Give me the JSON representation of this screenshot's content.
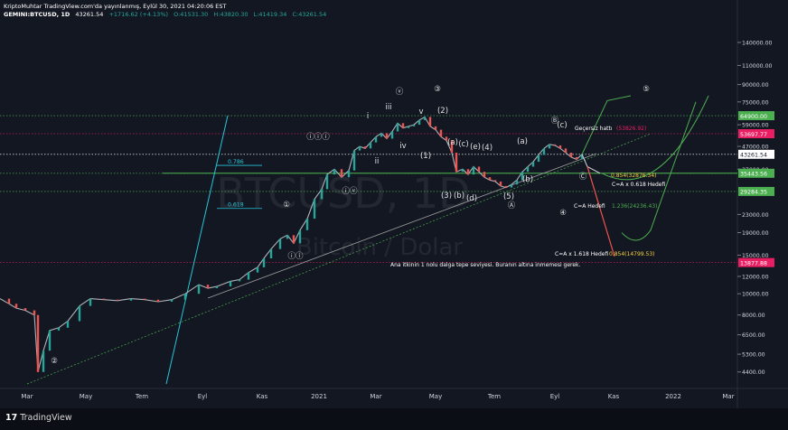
{
  "header": {
    "line1": "KriptoMuhtar TradingView.com'da yayınlanmış, Eylül 30, 2021 04:20:06 EST",
    "symbol": "GEMINI:BTCUSD, 1D",
    "last": "43261.54",
    "change": "+1716.62 (+4.13%)",
    "o": "O:41531.30",
    "h": "H:43820.30",
    "l": "L:41419.34",
    "c": "C:43261.54"
  },
  "footer": {
    "brand": "TradingView",
    "logo_icon": "tradingview-logo-icon"
  },
  "colors": {
    "background": "#131722",
    "up": "#26a69a",
    "down": "#ef5350",
    "green": "#4caf50",
    "red": "#e91e63",
    "cyan": "#26c6da",
    "white": "#ffffff"
  },
  "chart_data": {
    "type": "line",
    "watermark_main": "BTCUSD, 1D",
    "watermark_sub": "Bitcoin / Dolar",
    "y_scale": "log",
    "y_ticks": [
      140000,
      110000,
      90000,
      75000,
      59000,
      47000,
      37000,
      23000,
      19000,
      15000,
      12000,
      10000,
      8000,
      6500,
      5300,
      4400
    ],
    "y_tick_labels": [
      "140000.00",
      "110000.00",
      "90000.00",
      "75000.00",
      "59000.00",
      "47000.00",
      "37000.00",
      "23000.00",
      "19000.00",
      "15000.00",
      "12000.00",
      "10000.00",
      "8000.00",
      "6500.00",
      "5300.00",
      "4400.00"
    ],
    "x_tick_labels": [
      "Mar",
      "May",
      "Tem",
      "Eyl",
      "Kas",
      "2021",
      "Mar",
      "May",
      "Tem",
      "Eyl",
      "Kas",
      "2022",
      "Mar"
    ],
    "price_badges": [
      {
        "value": 64900,
        "label": "64900.00",
        "color": "#4caf50"
      },
      {
        "value": 53697.77,
        "label": "53697.77",
        "color": "#e91e63"
      },
      {
        "value": 43261.54,
        "label": "43261.54",
        "color": "#ffffff"
      },
      {
        "value": 35443.56,
        "label": "35443.56",
        "color": "#4caf50"
      },
      {
        "value": 29284.35,
        "label": "29284.35",
        "color": "#4caf50"
      },
      {
        "value": 13877.88,
        "label": "13877.88",
        "color": "#e91e63"
      }
    ],
    "price_path": [
      [
        0,
        9500
      ],
      [
        10,
        9000
      ],
      [
        18,
        8600
      ],
      [
        28,
        8400
      ],
      [
        38,
        8000
      ],
      [
        42,
        4400
      ],
      [
        48,
        5500
      ],
      [
        55,
        6800
      ],
      [
        65,
        7000
      ],
      [
        75,
        7500
      ],
      [
        88,
        8800
      ],
      [
        100,
        9500
      ],
      [
        115,
        9400
      ],
      [
        130,
        9300
      ],
      [
        145,
        9500
      ],
      [
        160,
        9400
      ],
      [
        175,
        9200
      ],
      [
        190,
        9400
      ],
      [
        205,
        10000
      ],
      [
        220,
        11000
      ],
      [
        230,
        10600
      ],
      [
        240,
        10800
      ],
      [
        255,
        11400
      ],
      [
        265,
        11600
      ],
      [
        275,
        12500
      ],
      [
        285,
        13200
      ],
      [
        292,
        14500
      ],
      [
        300,
        16000
      ],
      [
        310,
        17800
      ],
      [
        318,
        18500
      ],
      [
        325,
        17000
      ],
      [
        332,
        19500
      ],
      [
        340,
        22000
      ],
      [
        348,
        27000
      ],
      [
        356,
        30000
      ],
      [
        362,
        35000
      ],
      [
        370,
        37000
      ],
      [
        378,
        34000
      ],
      [
        386,
        36500
      ],
      [
        392,
        45000
      ],
      [
        398,
        47000
      ],
      [
        404,
        46000
      ],
      [
        410,
        49000
      ],
      [
        416,
        52000
      ],
      [
        422,
        54000
      ],
      [
        428,
        51000
      ],
      [
        434,
        55000
      ],
      [
        440,
        60000
      ],
      [
        446,
        57000
      ],
      [
        452,
        58000
      ],
      [
        458,
        59000
      ],
      [
        464,
        62000
      ],
      [
        470,
        64000
      ],
      [
        476,
        58000
      ],
      [
        482,
        56000
      ],
      [
        488,
        52000
      ],
      [
        494,
        50000
      ],
      [
        500,
        44000
      ],
      [
        505,
        36000
      ],
      [
        512,
        37000
      ],
      [
        518,
        35000
      ],
      [
        524,
        38000
      ],
      [
        530,
        36000
      ],
      [
        536,
        34000
      ],
      [
        542,
        33000
      ],
      [
        548,
        32500
      ],
      [
        554,
        31000
      ],
      [
        560,
        30500
      ],
      [
        566,
        31500
      ],
      [
        572,
        33000
      ],
      [
        578,
        36000
      ],
      [
        584,
        38000
      ],
      [
        590,
        40000
      ],
      [
        596,
        43000
      ],
      [
        602,
        46000
      ],
      [
        608,
        48000
      ],
      [
        614,
        47500
      ],
      [
        620,
        46000
      ],
      [
        626,
        44000
      ],
      [
        632,
        42000
      ],
      [
        638,
        41000
      ],
      [
        644,
        43261
      ]
    ],
    "levels": [
      {
        "label": "0.786",
        "value": 38500,
        "color": "#26c6da"
      },
      {
        "label": "0.618",
        "value": 24500,
        "color": "#26c6da"
      }
    ],
    "annotations": [
      {
        "text": "Geçersiz hattı",
        "color": "#ffffff"
      },
      {
        "text": "(53826.92)",
        "color": "#e91e63"
      },
      {
        "text": "0.854(32876.34)",
        "color": "#f5d142"
      },
      {
        "text": "C=A x 0.618 Hedefi",
        "color": "#ffffff"
      },
      {
        "text": "C=A Hedefi",
        "color": "#ffffff"
      },
      {
        "text": "1.236(24236.43)",
        "color": "#4caf50"
      },
      {
        "text": "C=A x 1.618 Hedefi",
        "color": "#ffffff"
      },
      {
        "text": "0.854(14799.53)",
        "color": "#f5d142"
      },
      {
        "text": "Ana itkinin 1 nolu dalga tepe seviyesi. Buranın altına inmemesi gerek.",
        "color": "#ffffff"
      }
    ],
    "wave_labels": [
      "②",
      "①",
      "ⓘⓘ",
      "ⓘⓘⓘ",
      "ⓘⓥ",
      "ⓥ",
      "③",
      "i",
      "ii",
      "iii",
      "iv",
      "v",
      "(1)",
      "(2)",
      "(3)",
      "(4)",
      "(5)",
      "(a)",
      "(b)",
      "(c)",
      "(d)",
      "(e)",
      "(a)",
      "(b)",
      "(c)",
      "Ⓑ",
      "Ⓐ",
      "Ⓒ",
      "④",
      "⑤"
    ]
  }
}
